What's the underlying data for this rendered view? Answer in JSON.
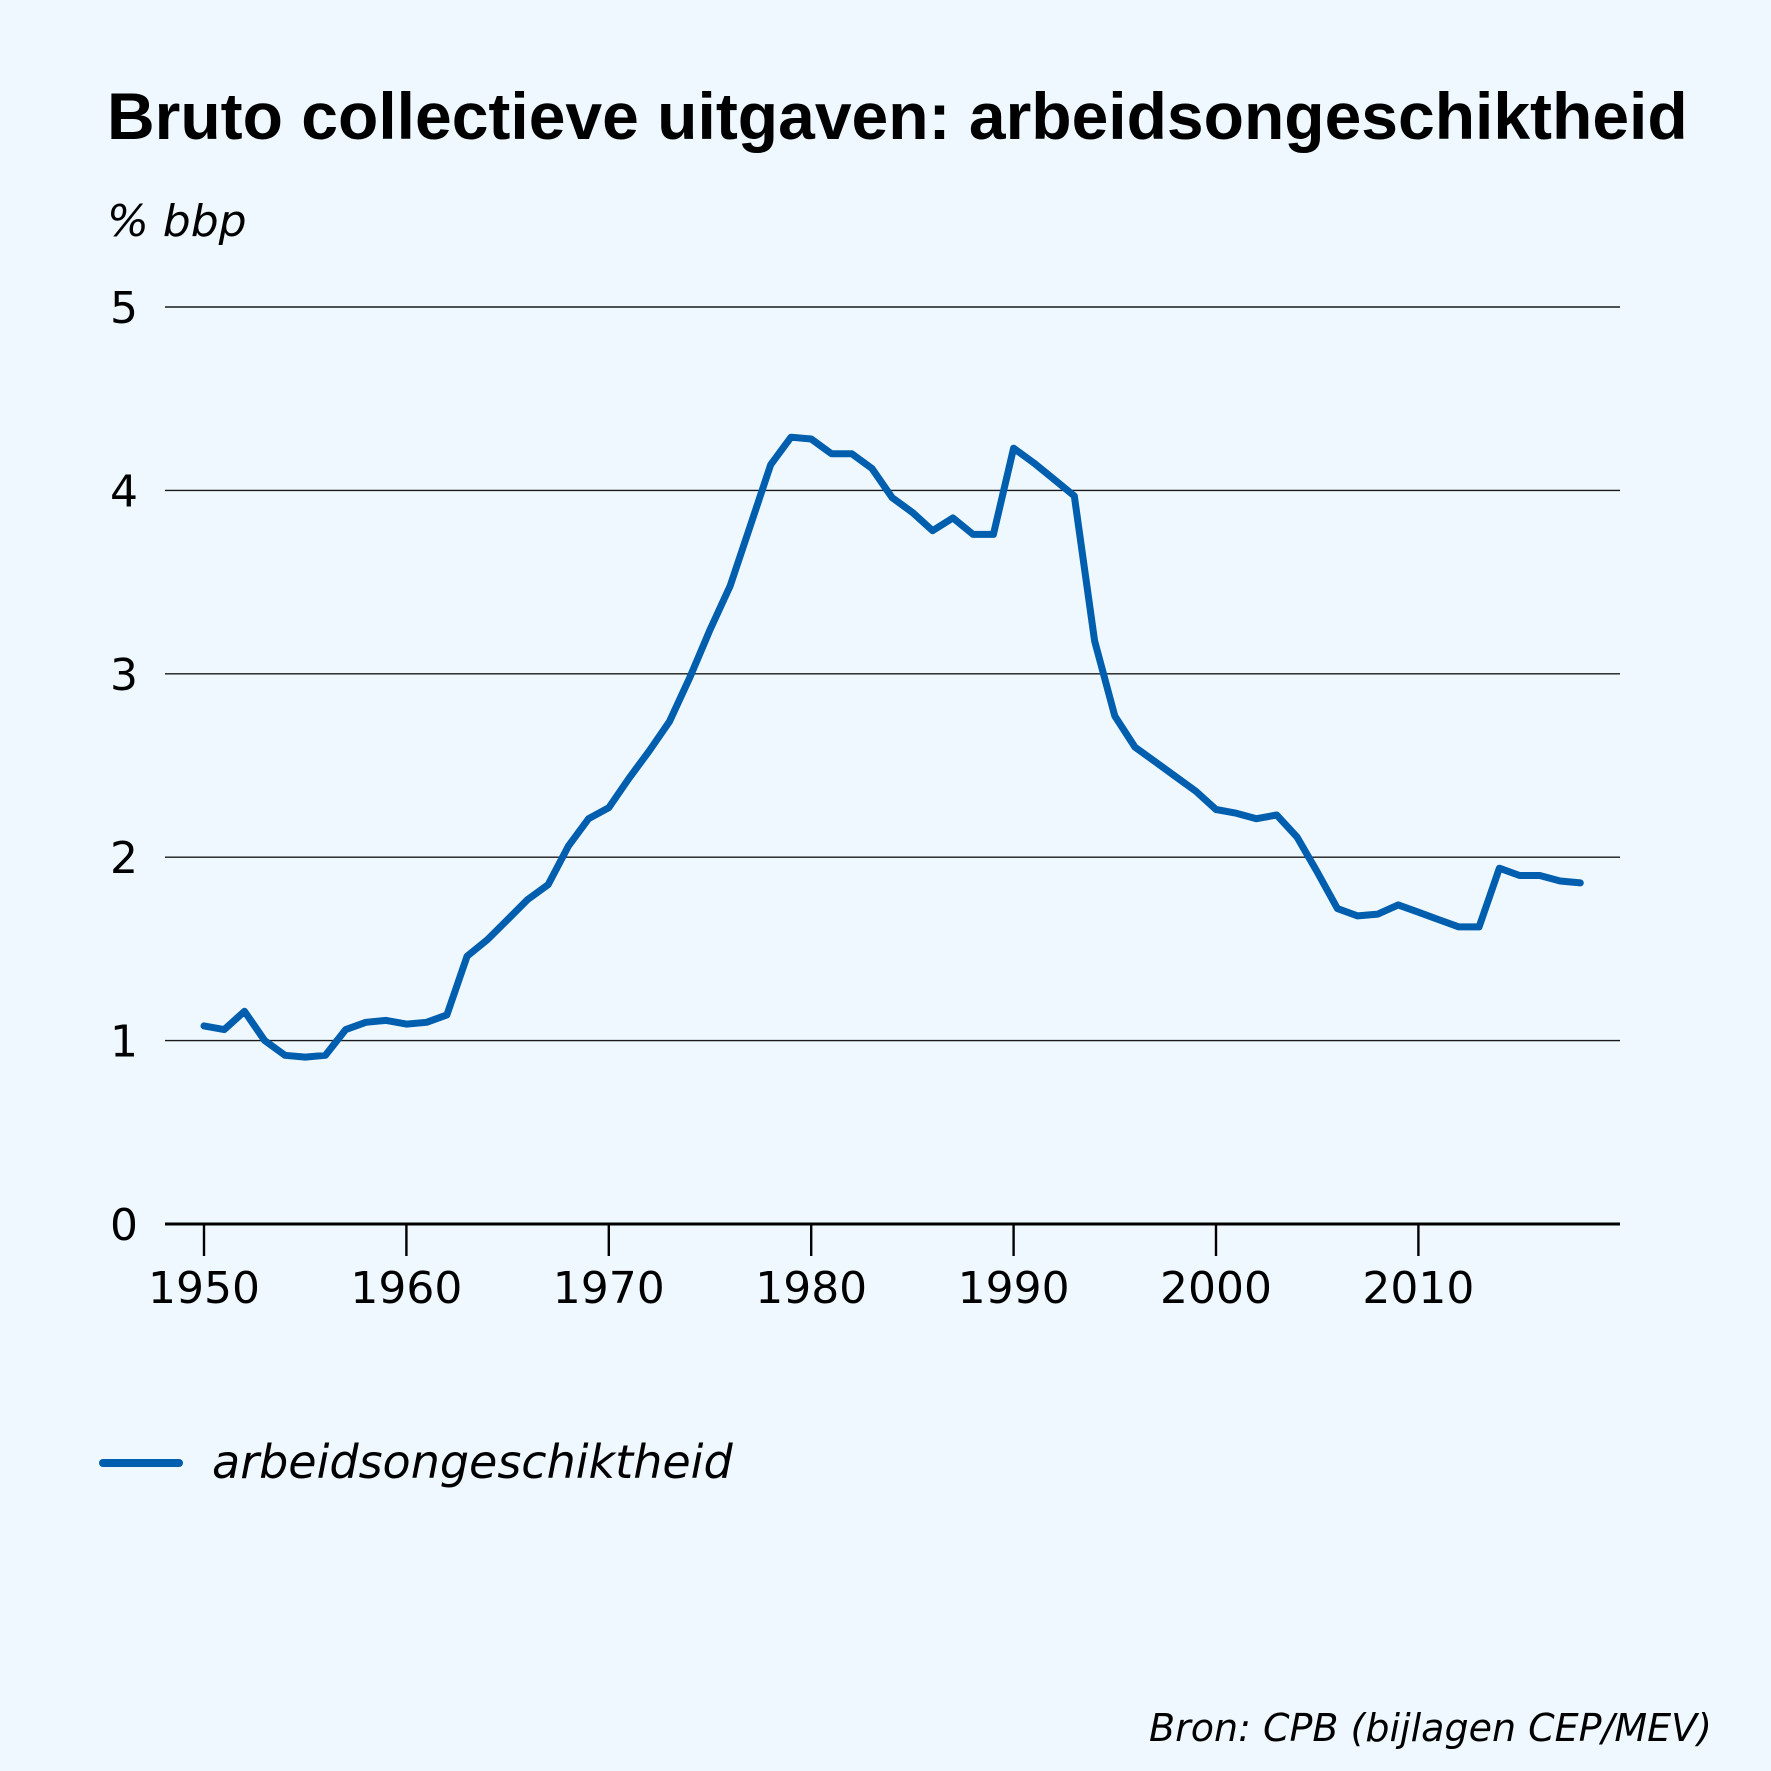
{
  "chart_data": {
    "type": "line",
    "title": "Bruto collectieve uitgaven: arbeidsongeschiktheid",
    "ylabel": "% bbp",
    "xlabel": "",
    "xlim": [
      1950,
      2018
    ],
    "ylim": [
      0,
      5
    ],
    "yticks": [
      "0",
      "1",
      "2",
      "3",
      "4",
      "5"
    ],
    "xticks": [
      "1950",
      "1960",
      "1970",
      "1980",
      "1990",
      "2000",
      "2010"
    ],
    "grid": "horizontal",
    "legend_position": "bottom-left",
    "series": [
      {
        "name": "arbeidsongeschiktheid",
        "color": "#005eae",
        "x": [
          1950,
          1951,
          1952,
          1953,
          1954,
          1955,
          1956,
          1957,
          1958,
          1959,
          1960,
          1961,
          1962,
          1963,
          1964,
          1965,
          1966,
          1967,
          1968,
          1969,
          1970,
          1971,
          1972,
          1973,
          1974,
          1975,
          1976,
          1977,
          1978,
          1979,
          1980,
          1981,
          1982,
          1983,
          1984,
          1985,
          1986,
          1987,
          1988,
          1989,
          1990,
          1991,
          1992,
          1993,
          1994,
          1995,
          1996,
          1997,
          1998,
          1999,
          2000,
          2001,
          2002,
          2003,
          2004,
          2005,
          2006,
          2007,
          2008,
          2009,
          2010,
          2011,
          2012,
          2013,
          2014,
          2015,
          2016,
          2017,
          2018
        ],
        "values": [
          1.08,
          1.06,
          1.16,
          1.0,
          0.92,
          0.91,
          0.92,
          1.06,
          1.1,
          1.11,
          1.09,
          1.1,
          1.14,
          1.46,
          1.55,
          1.66,
          1.77,
          1.85,
          2.06,
          2.21,
          2.27,
          2.43,
          2.58,
          2.74,
          2.98,
          3.24,
          3.48,
          3.81,
          4.14,
          4.29,
          4.28,
          4.2,
          4.2,
          4.12,
          3.96,
          3.88,
          3.78,
          3.85,
          3.76,
          3.76,
          4.23,
          4.15,
          4.06,
          3.97,
          3.18,
          2.77,
          2.6,
          2.52,
          2.44,
          2.36,
          2.26,
          2.24,
          2.21,
          2.23,
          2.11,
          1.92,
          1.72,
          1.68,
          1.69,
          1.74,
          1.7,
          1.66,
          1.62,
          1.62,
          1.94,
          1.9,
          1.9,
          1.87,
          1.86
        ]
      }
    ],
    "source": "Bron: CPB (bijlagen CEP/MEV)"
  }
}
